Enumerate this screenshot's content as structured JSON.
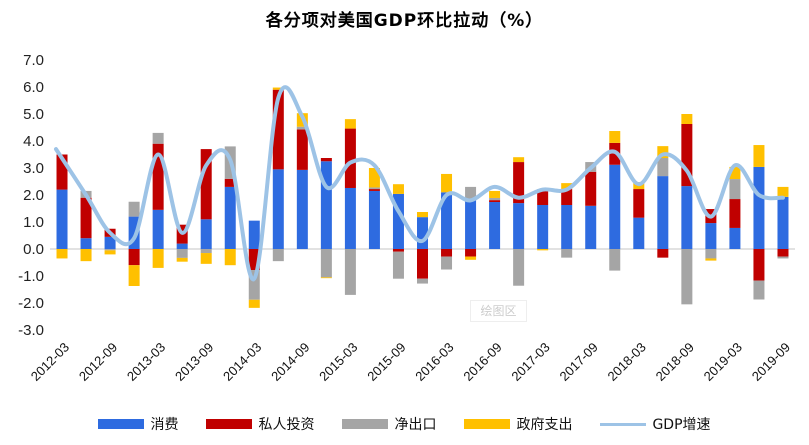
{
  "chart_data": {
    "type": "bar",
    "stacked": true,
    "title": "各分项对美国GDP环比拉动（%）",
    "xlabel": "",
    "ylabel": "",
    "ylim": [
      -3.0,
      7.0
    ],
    "yticks": [
      "7.0",
      "6.0",
      "5.0",
      "4.0",
      "3.0",
      "2.0",
      "1.0",
      "0.0",
      "-1.0",
      "-2.0",
      "-3.0"
    ],
    "ytick_values": [
      7,
      6,
      5,
      4,
      3,
      2,
      1,
      0,
      -1,
      -2,
      -3
    ],
    "grid": false,
    "legend_position": "bottom",
    "categories": [
      "2012-03",
      "2012-06",
      "2012-09",
      "2012-12",
      "2013-03",
      "2013-06",
      "2013-09",
      "2013-12",
      "2014-03",
      "2014-06",
      "2014-09",
      "2014-12",
      "2015-03",
      "2015-06",
      "2015-09",
      "2015-12",
      "2016-03",
      "2016-06",
      "2016-09",
      "2016-12",
      "2017-03",
      "2017-06",
      "2017-09",
      "2017-12",
      "2018-03",
      "2018-06",
      "2018-09",
      "2018-12",
      "2019-03",
      "2019-06",
      "2019-09"
    ],
    "xtick_labels": [
      "2012-03",
      "2012-09",
      "2013-03",
      "2013-09",
      "2014-03",
      "2014-09",
      "2015-03",
      "2015-09",
      "2016-03",
      "2016-09",
      "2017-03",
      "2017-09",
      "2018-03",
      "2018-09",
      "2019-03",
      "2019-09"
    ],
    "series": [
      {
        "name": "消费",
        "kind": "bar",
        "color": "#2E6BE0",
        "values": [
          2.2,
          0.4,
          0.45,
          1.2,
          1.45,
          0.2,
          1.1,
          2.3,
          1.05,
          2.95,
          2.93,
          3.25,
          2.26,
          2.15,
          2.04,
          1.18,
          2.1,
          1.85,
          1.74,
          1.7,
          1.63,
          1.63,
          1.6,
          3.12,
          1.16,
          2.7,
          2.33,
          0.96,
          0.78,
          3.04,
          1.93
        ]
      },
      {
        "name": "私人投资",
        "kind": "bar",
        "color": "#C00000",
        "values": [
          1.3,
          1.5,
          0.3,
          -0.6,
          2.45,
          0.7,
          2.6,
          0.3,
          -0.78,
          2.95,
          1.5,
          0.12,
          2.2,
          0.07,
          -0.1,
          -1.1,
          -0.28,
          -0.28,
          0.07,
          1.52,
          0.56,
          0.59,
          1.26,
          0.81,
          1.06,
          -0.32,
          2.3,
          0.52,
          1.07,
          -1.17,
          -0.28
        ]
      },
      {
        "name": "净出口",
        "kind": "bar",
        "color": "#A5A5A5",
        "values": [
          0.0,
          0.25,
          -0.05,
          0.55,
          0.4,
          -0.33,
          -0.15,
          1.2,
          -1.1,
          -0.45,
          0.1,
          -1.05,
          -1.7,
          0.06,
          -1.0,
          -0.18,
          -0.48,
          0.45,
          0.08,
          -1.36,
          0.03,
          -0.32,
          0.36,
          -0.8,
          0.0,
          0.67,
          -2.05,
          -0.35,
          0.74,
          -0.7,
          -0.07
        ]
      },
      {
        "name": "政府支出",
        "kind": "bar",
        "color": "#FFC000",
        "values": [
          -0.35,
          -0.45,
          -0.15,
          -0.77,
          -0.7,
          -0.14,
          -0.4,
          -0.6,
          -0.3,
          0.08,
          0.5,
          -0.03,
          0.35,
          0.72,
          0.36,
          0.19,
          0.68,
          -0.12,
          0.26,
          0.18,
          -0.05,
          0.22,
          0.0,
          0.44,
          0.26,
          0.44,
          0.37,
          -0.08,
          0.45,
          0.81,
          0.37
        ]
      },
      {
        "name": "GDP增速",
        "kind": "line",
        "color": "#9DC3E6",
        "values": [
          3.7,
          2.0,
          0.6,
          0.4,
          3.5,
          0.6,
          3.1,
          3.3,
          -1.1,
          5.6,
          4.9,
          2.3,
          3.2,
          3.1,
          1.4,
          0.3,
          2.0,
          1.8,
          2.3,
          1.9,
          2.2,
          2.2,
          3.0,
          3.6,
          2.4,
          3.5,
          2.9,
          1.2,
          3.1,
          2.0,
          1.9
        ]
      }
    ]
  },
  "legend": {
    "items": [
      {
        "label": "消费",
        "color": "#2E6BE0"
      },
      {
        "label": "私人投资",
        "color": "#C00000"
      },
      {
        "label": "净出口",
        "color": "#A5A5A5"
      },
      {
        "label": "政府支出",
        "color": "#FFC000"
      },
      {
        "label": "GDP增速",
        "color": "#9DC3E6"
      }
    ]
  },
  "watermark": "绘图区"
}
